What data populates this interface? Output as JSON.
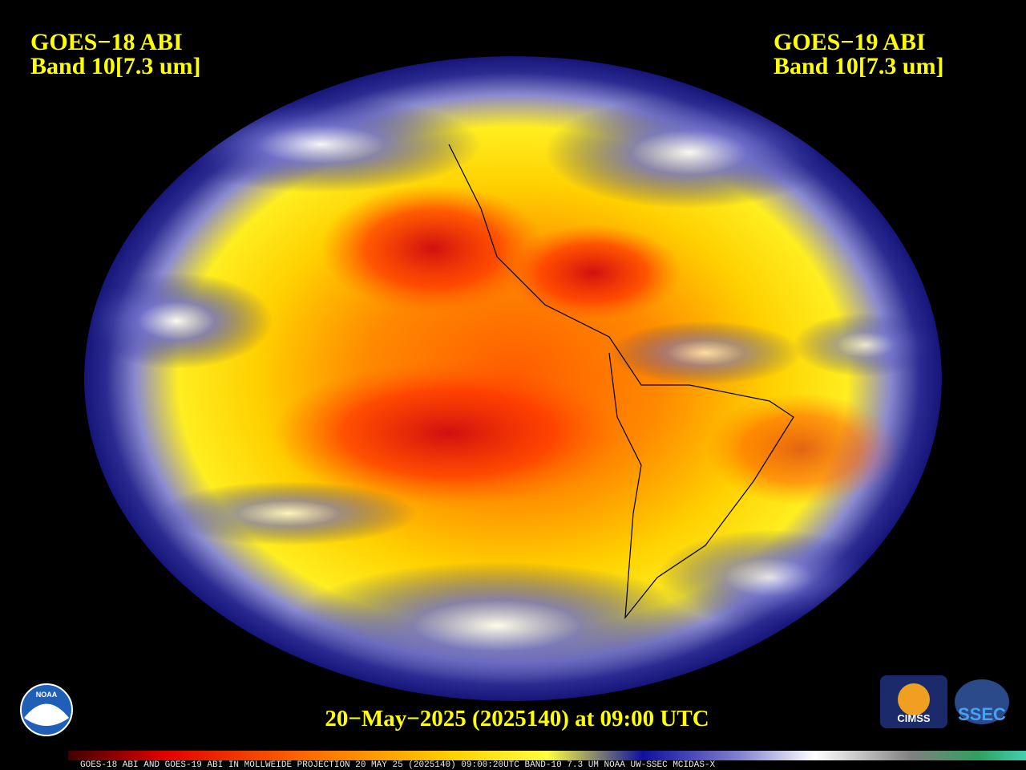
{
  "header": {
    "left": {
      "line1": "GOES−18 ABI",
      "line2": "Band 10[7.3 um]"
    },
    "right": {
      "line1": "GOES−19 ABI",
      "line2": "Band 10[7.3 um]"
    }
  },
  "timestamp": "20−May−2025 (2025140) at 09:00 UTC",
  "logos": {
    "noaa": "NOAA",
    "cimss": "CIMSS",
    "ssec": "SSEC"
  },
  "colorbar_caption": "GOES-18 ABI AND GOES-19 ABI IN MOLLWEIDE PROJECTION 20 MAY 25 (2025140) 09:00:20UTC BAND-10 7.3 UM NOAA UW-SSEC MCIDAS-X"
}
